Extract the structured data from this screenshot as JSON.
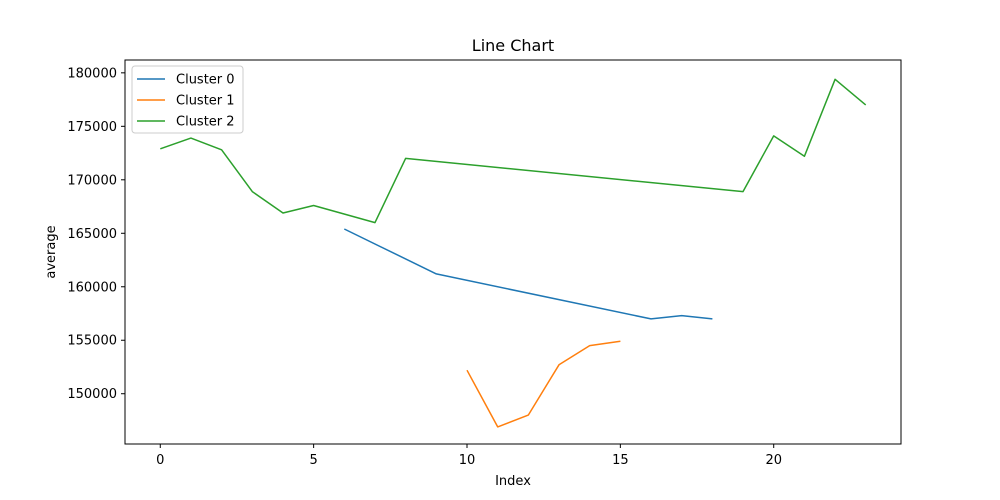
{
  "chart_data": {
    "type": "line",
    "title": "Line Chart",
    "xlabel": "Index",
    "ylabel": "average",
    "xlim": [
      -1.15,
      24.15
    ],
    "ylim": [
      145300,
      181200
    ],
    "x_ticks": [
      0,
      5,
      10,
      15,
      20
    ],
    "y_ticks": [
      150000,
      155000,
      160000,
      165000,
      170000,
      175000,
      180000
    ],
    "grid": false,
    "legend_position": "top-left",
    "series": [
      {
        "name": "Cluster 0",
        "color": "#1f77b4",
        "x": [
          6,
          9,
          16,
          17,
          18
        ],
        "y": [
          165400,
          161200,
          157000,
          157300,
          157000
        ]
      },
      {
        "name": "Cluster 1",
        "color": "#ff7f0e",
        "x": [
          10,
          11,
          12,
          13,
          14,
          15
        ],
        "y": [
          152200,
          146900,
          148000,
          152700,
          154500,
          154900
        ]
      },
      {
        "name": "Cluster 2",
        "color": "#2ca02c",
        "x": [
          0,
          1,
          2,
          3,
          4,
          5,
          7,
          8,
          19,
          20,
          21,
          22,
          23
        ],
        "y": [
          172900,
          173900,
          172800,
          168900,
          166900,
          167600,
          166000,
          172000,
          168900,
          174100,
          172200,
          179400,
          177000
        ]
      }
    ]
  }
}
